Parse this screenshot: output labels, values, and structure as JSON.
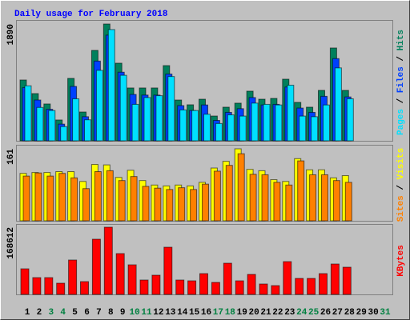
{
  "chart_data": [
    {
      "type": "bar",
      "title": "Daily usage for February 2018",
      "ylim": [
        0,
        1890
      ],
      "yticks": [
        1890
      ],
      "series": [
        {
          "name": "Hits",
          "color": "#00805c",
          "values": [
            984,
            764,
            596,
            337,
            1010,
            466,
            1463,
            1890,
            1256,
            855,
            855,
            855,
            1217,
            660,
            583,
            673,
            401,
            544,
            609,
            803,
            673,
            686,
            997,
            622,
            544,
            816,
            1502,
            816,
            null,
            null,
            null
          ]
        },
        {
          "name": "Files",
          "color": "#0040ff",
          "values": [
            860,
            660,
            510,
            270,
            880,
            390,
            1290,
            1710,
            1110,
            750,
            740,
            740,
            1080,
            570,
            490,
            580,
            330,
            460,
            520,
            700,
            580,
            590,
            870,
            530,
            460,
            720,
            1330,
            710,
            null,
            null,
            null
          ]
        },
        {
          "name": "Pages",
          "color": "#00e0ff",
          "values": [
            890,
            540,
            490,
            230,
            680,
            340,
            1140,
            1800,
            1060,
            590,
            700,
            730,
            1040,
            500,
            490,
            430,
            280,
            420,
            400,
            610,
            590,
            580,
            900,
            400,
            390,
            580,
            1180,
            680,
            null,
            null,
            null
          ]
        }
      ]
    },
    {
      "type": "bar",
      "ylim": [
        0,
        161
      ],
      "yticks": [
        161
      ],
      "series": [
        {
          "name": "Visits",
          "color": "#ffff00",
          "values": [
            106,
            108,
            108,
            110,
            110,
            88,
            126,
            125,
            97,
            113,
            90,
            80,
            78,
            80,
            78,
            86,
            118,
            133,
            161,
            115,
            112,
            92,
            88,
            139,
            114,
            114,
            96,
            101,
            null,
            null,
            null
          ]
        },
        {
          "name": "Sites",
          "color": "#ff8000",
          "values": [
            100,
            107,
            100,
            106,
            96,
            72,
            110,
            112,
            90,
            99,
            77,
            73,
            70,
            74,
            70,
            82,
            111,
            124,
            150,
            104,
            103,
            86,
            80,
            134,
            103,
            103,
            90,
            86,
            null,
            null,
            null
          ]
        }
      ]
    },
    {
      "type": "bar",
      "ylim": [
        0,
        168612
      ],
      "yticks": [
        168612
      ],
      "categories": [
        "1",
        "2",
        "3",
        "4",
        "5",
        "6",
        "7",
        "8",
        "9",
        "10",
        "11",
        "12",
        "13",
        "14",
        "15",
        "16",
        "17",
        "18",
        "19",
        "20",
        "21",
        "22",
        "23",
        "24",
        "25",
        "26",
        "27",
        "28",
        "29",
        "30",
        "31"
      ],
      "label_colors": [
        "#000000",
        "#000000",
        "#008040",
        "#008040",
        "#000000",
        "#000000",
        "#000000",
        "#000000",
        "#000000",
        "#008040",
        "#008040",
        "#000000",
        "#000000",
        "#000000",
        "#000000",
        "#000000",
        "#008040",
        "#008040",
        "#000000",
        "#000000",
        "#000000",
        "#000000",
        "#000000",
        "#008040",
        "#008040",
        "#000000",
        "#000000",
        "#000000",
        "#000000",
        "#000000",
        "#008040"
      ],
      "series": [
        {
          "name": "KBytes",
          "color": "#ff0000",
          "values": [
            64226,
            42150,
            42150,
            28100,
            86300,
            32100,
            138500,
            168612,
            102400,
            74260,
            36100,
            48170,
            118400,
            36100,
            34100,
            52180,
            30100,
            78270,
            34100,
            50180,
            26090,
            22080,
            82290,
            40140,
            40140,
            52180,
            76270,
            68240,
            null,
            null,
            null
          ]
        }
      ]
    }
  ]
}
